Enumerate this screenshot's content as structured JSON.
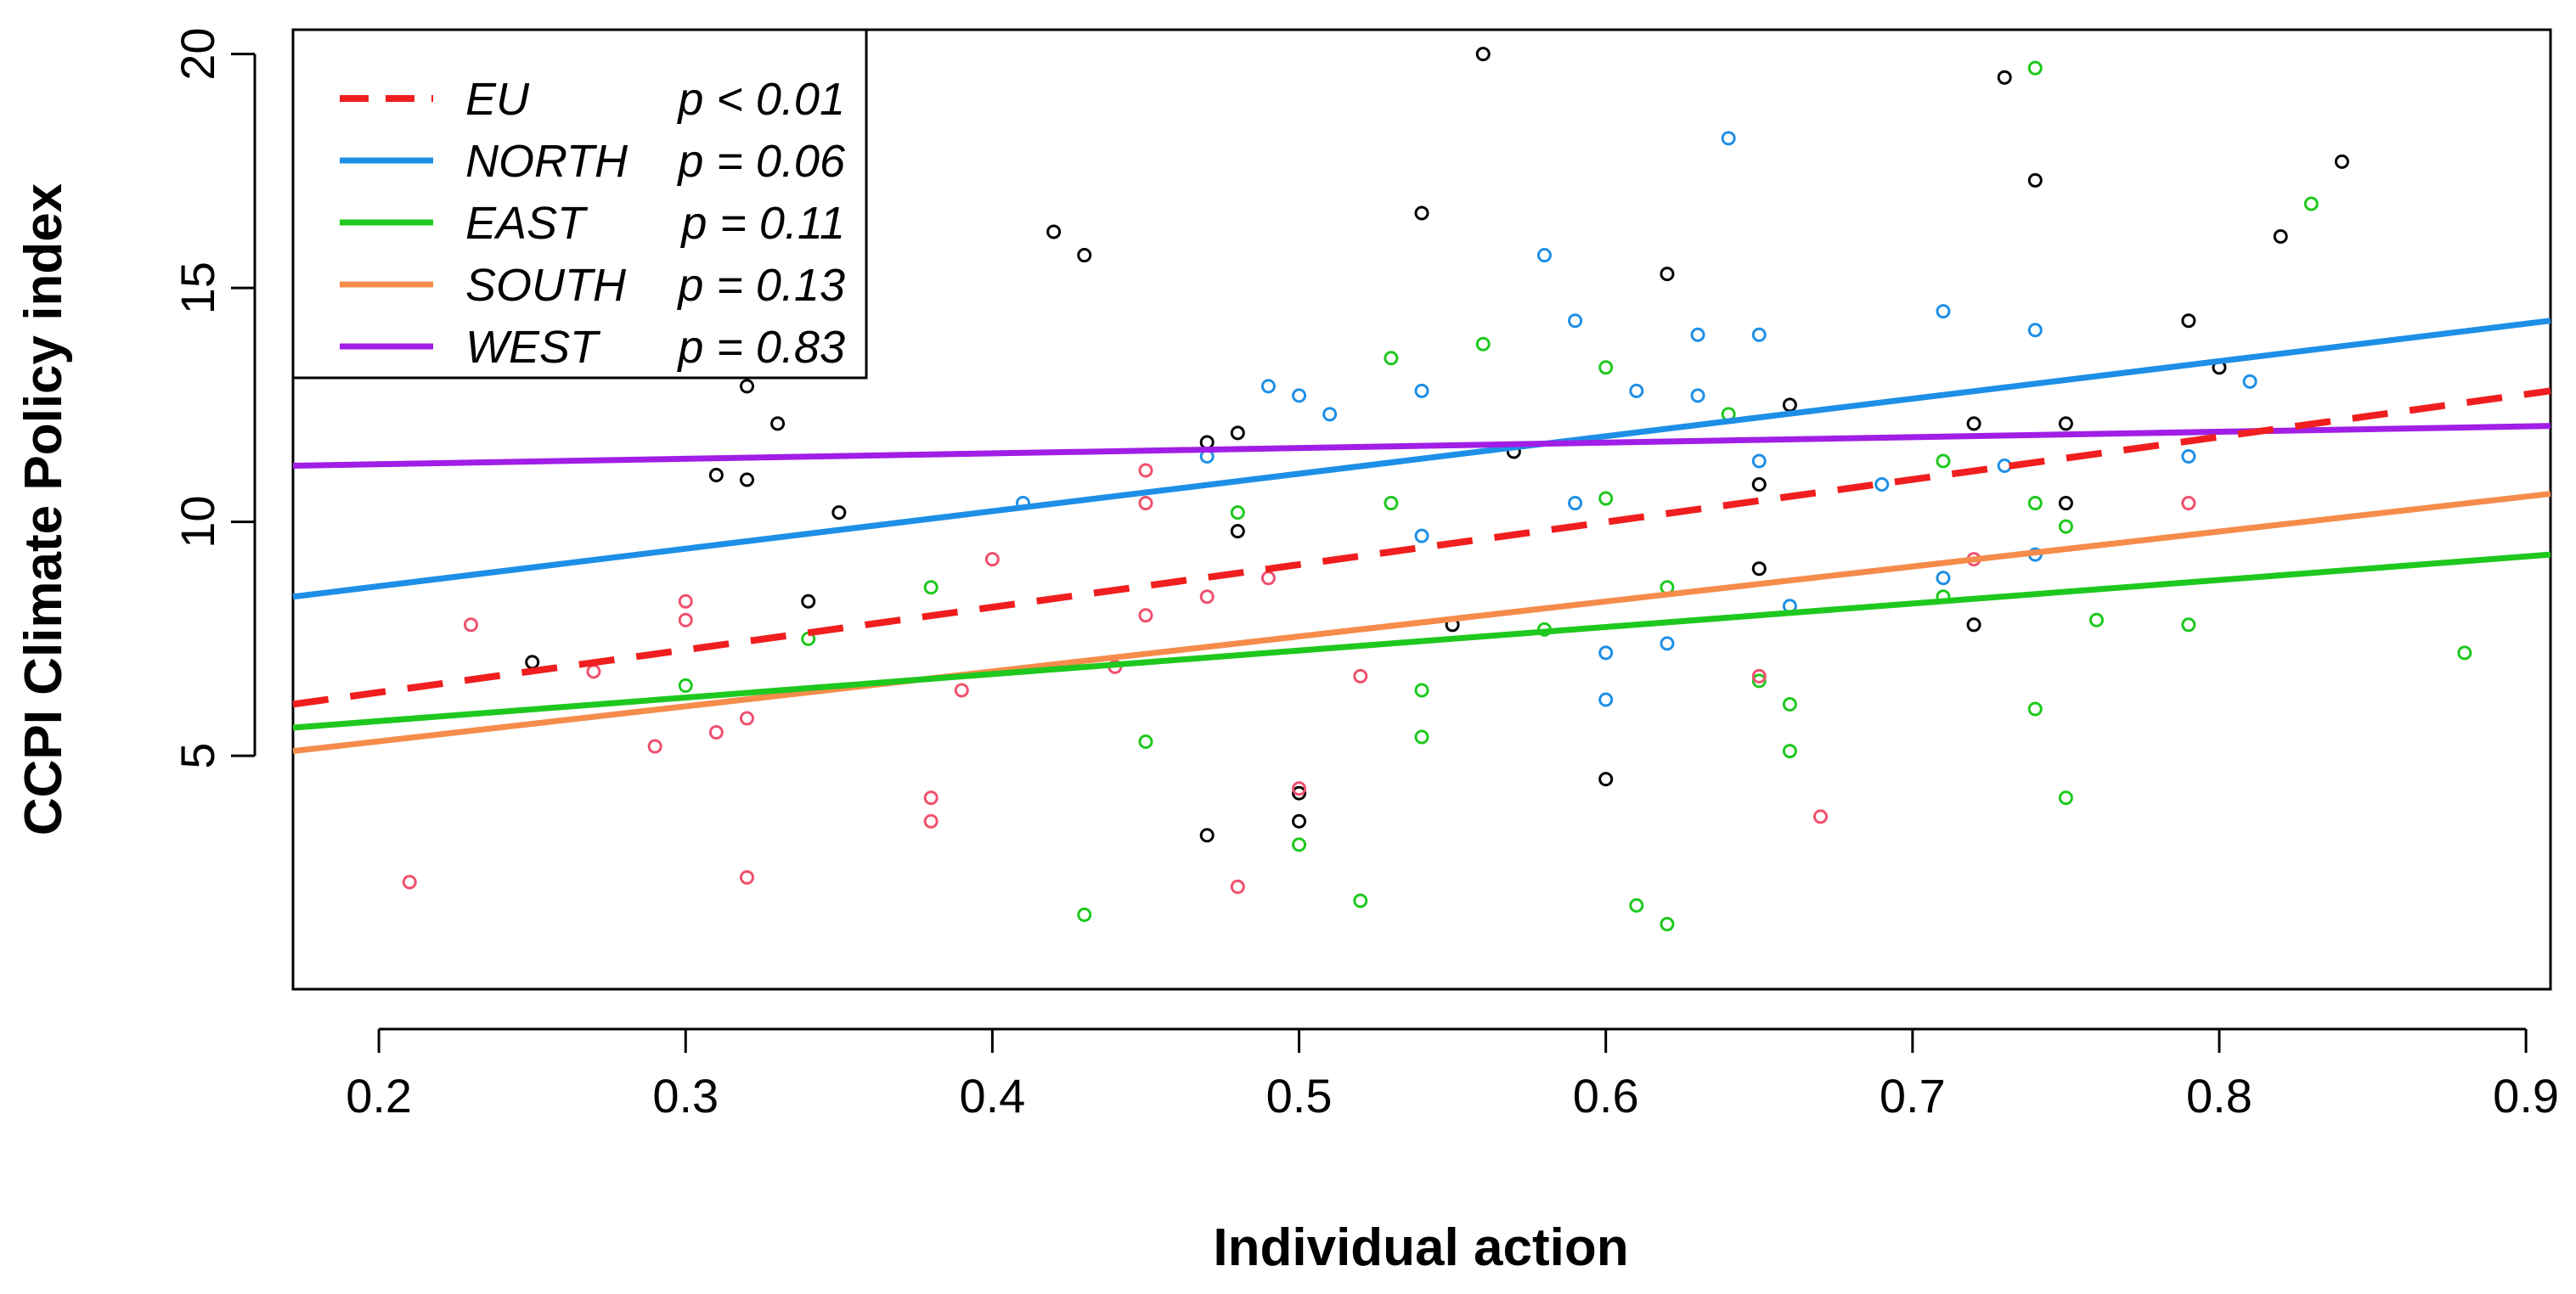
{
  "chart_data": {
    "type": "scatter",
    "title": "",
    "xlabel": "Individual action",
    "ylabel": "CCPI Climate Policy index",
    "xlim": [
      0.172,
      0.908
    ],
    "ylim": [
      0.01,
      20.52
    ],
    "xticks": [
      "0.2",
      "0.3",
      "0.4",
      "0.5",
      "0.6",
      "0.7",
      "0.8",
      "0.9"
    ],
    "yticks": [
      "5",
      "10",
      "15",
      "20"
    ],
    "grid": false,
    "legend_position": "top-left",
    "colors": {
      "black": "#000000",
      "NORTH": "#1e8fe6",
      "EAST": "#1ec81e",
      "SOUTH": "#f58c4b",
      "WEST": "#a01ee6",
      "EU": "#f01e1e",
      "pink": "#f0506e"
    },
    "fit_lines": [
      {
        "name": "EU",
        "p": "p < 0.01",
        "x": [
          0.172,
          0.908
        ],
        "y": [
          6.1,
          12.8
        ],
        "dashed": true
      },
      {
        "name": "NORTH",
        "p": "p = 0.06",
        "x": [
          0.172,
          0.908
        ],
        "y": [
          8.4,
          14.3
        ],
        "dashed": false
      },
      {
        "name": "EAST",
        "p": "p = 0.11",
        "x": [
          0.172,
          0.908
        ],
        "y": [
          5.6,
          9.3
        ],
        "dashed": false
      },
      {
        "name": "SOUTH",
        "p": "p = 0.13",
        "x": [
          0.172,
          0.908
        ],
        "y": [
          5.1,
          10.6
        ],
        "dashed": false
      },
      {
        "name": "WEST",
        "p": "p = 0.83",
        "x": [
          0.172,
          0.908
        ],
        "y": [
          11.2,
          12.05
        ],
        "dashed": false
      }
    ],
    "points": {
      "black": [
        [
          0.25,
          7.0
        ],
        [
          0.31,
          11.0
        ],
        [
          0.32,
          10.9
        ],
        [
          0.32,
          12.9
        ],
        [
          0.33,
          12.1
        ],
        [
          0.34,
          8.3
        ],
        [
          0.35,
          10.2
        ],
        [
          0.42,
          16.2
        ],
        [
          0.43,
          15.7
        ],
        [
          0.47,
          11.7
        ],
        [
          0.47,
          3.3
        ],
        [
          0.48,
          11.9
        ],
        [
          0.48,
          9.8
        ],
        [
          0.5,
          4.2
        ],
        [
          0.5,
          3.6
        ],
        [
          0.54,
          16.6
        ],
        [
          0.55,
          7.8
        ],
        [
          0.56,
          20.0
        ],
        [
          0.57,
          11.5
        ],
        [
          0.6,
          4.5
        ],
        [
          0.62,
          15.3
        ],
        [
          0.65,
          10.8
        ],
        [
          0.65,
          9.0
        ],
        [
          0.66,
          12.5
        ],
        [
          0.72,
          12.1
        ],
        [
          0.72,
          7.8
        ],
        [
          0.73,
          19.5
        ],
        [
          0.74,
          17.3
        ],
        [
          0.75,
          12.1
        ],
        [
          0.75,
          10.4
        ],
        [
          0.79,
          14.3
        ],
        [
          0.8,
          13.3
        ],
        [
          0.82,
          16.1
        ],
        [
          0.84,
          17.7
        ]
      ],
      "NORTH": [
        [
          0.41,
          10.4
        ],
        [
          0.47,
          11.4
        ],
        [
          0.49,
          12.9
        ],
        [
          0.5,
          12.7
        ],
        [
          0.51,
          12.3
        ],
        [
          0.54,
          12.8
        ],
        [
          0.54,
          9.7
        ],
        [
          0.58,
          15.7
        ],
        [
          0.59,
          14.3
        ],
        [
          0.59,
          10.4
        ],
        [
          0.6,
          7.2
        ],
        [
          0.6,
          6.2
        ],
        [
          0.61,
          12.8
        ],
        [
          0.62,
          7.4
        ],
        [
          0.63,
          14.0
        ],
        [
          0.63,
          12.7
        ],
        [
          0.64,
          18.2
        ],
        [
          0.65,
          14.0
        ],
        [
          0.65,
          11.3
        ],
        [
          0.66,
          8.2
        ],
        [
          0.69,
          10.8
        ],
        [
          0.71,
          14.5
        ],
        [
          0.71,
          8.8
        ],
        [
          0.73,
          11.2
        ],
        [
          0.74,
          14.1
        ],
        [
          0.74,
          9.3
        ],
        [
          0.79,
          11.4
        ],
        [
          0.81,
          13.0
        ]
      ],
      "EAST": [
        [
          0.3,
          6.5
        ],
        [
          0.34,
          7.5
        ],
        [
          0.38,
          8.6
        ],
        [
          0.43,
          1.6
        ],
        [
          0.45,
          5.3
        ],
        [
          0.48,
          10.2
        ],
        [
          0.5,
          3.1
        ],
        [
          0.52,
          1.9
        ],
        [
          0.53,
          13.5
        ],
        [
          0.53,
          10.4
        ],
        [
          0.54,
          6.4
        ],
        [
          0.54,
          5.4
        ],
        [
          0.56,
          13.8
        ],
        [
          0.58,
          7.7
        ],
        [
          0.6,
          13.3
        ],
        [
          0.6,
          10.5
        ],
        [
          0.61,
          1.8
        ],
        [
          0.62,
          8.6
        ],
        [
          0.62,
          1.4
        ],
        [
          0.64,
          12.3
        ],
        [
          0.65,
          6.6
        ],
        [
          0.66,
          6.1
        ],
        [
          0.66,
          5.1
        ],
        [
          0.71,
          11.3
        ],
        [
          0.71,
          8.4
        ],
        [
          0.74,
          19.7
        ],
        [
          0.74,
          10.4
        ],
        [
          0.74,
          6.0
        ],
        [
          0.75,
          9.9
        ],
        [
          0.75,
          4.1
        ],
        [
          0.76,
          7.9
        ],
        [
          0.79,
          7.8
        ],
        [
          0.83,
          16.8
        ],
        [
          0.88,
          7.2
        ]
      ],
      "pink": [
        [
          0.21,
          2.3
        ],
        [
          0.23,
          7.8
        ],
        [
          0.27,
          6.8
        ],
        [
          0.29,
          5.2
        ],
        [
          0.3,
          8.3
        ],
        [
          0.3,
          7.9
        ],
        [
          0.31,
          5.5
        ],
        [
          0.32,
          5.8
        ],
        [
          0.32,
          2.4
        ],
        [
          0.38,
          4.1
        ],
        [
          0.38,
          3.6
        ],
        [
          0.39,
          6.4
        ],
        [
          0.4,
          9.2
        ],
        [
          0.44,
          6.9
        ],
        [
          0.45,
          11.1
        ],
        [
          0.45,
          10.4
        ],
        [
          0.45,
          8.0
        ],
        [
          0.47,
          8.4
        ],
        [
          0.48,
          2.2
        ],
        [
          0.49,
          8.8
        ],
        [
          0.5,
          4.3
        ],
        [
          0.52,
          6.7
        ],
        [
          0.65,
          6.7
        ],
        [
          0.67,
          3.7
        ],
        [
          0.72,
          9.2
        ],
        [
          0.79,
          10.4
        ]
      ]
    }
  }
}
